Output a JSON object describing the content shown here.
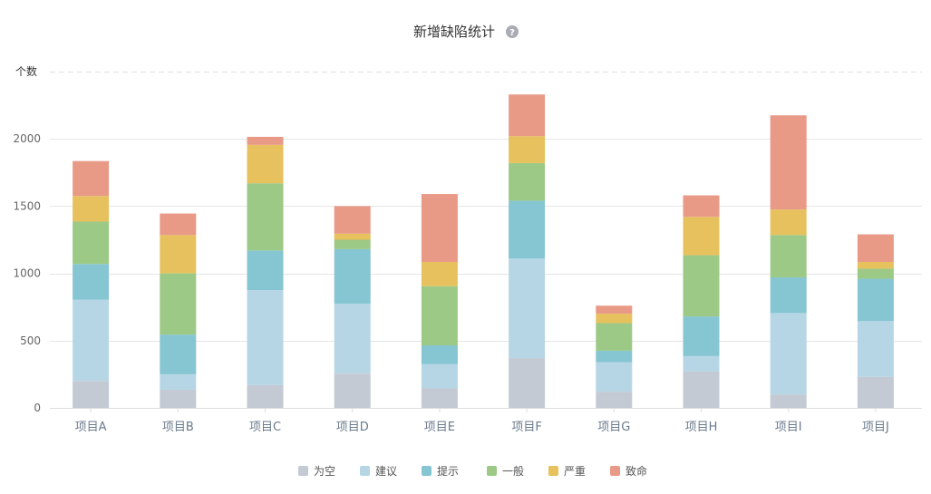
{
  "chart_data": {
    "type": "bar",
    "stacked": true,
    "title": "新增缺陷统计",
    "help_icon": "help-circle-icon",
    "ylabel": "个数",
    "xlabel": "",
    "ylim": [
      0,
      2500
    ],
    "yticks": [
      0,
      500,
      1000,
      1500,
      2000
    ],
    "grid": true,
    "legend_position": "bottom-center",
    "categories": [
      "项目A",
      "项目B",
      "项目C",
      "项目D",
      "项目E",
      "项目F",
      "项目G",
      "项目H",
      "项目I",
      "项目J"
    ],
    "series": [
      {
        "name": "为空",
        "color": "#c3cad3",
        "values": [
          200,
          135,
          170,
          255,
          145,
          370,
          120,
          270,
          100,
          230
        ]
      },
      {
        "name": "建议",
        "color": "#b7d6e5",
        "values": [
          605,
          115,
          705,
          520,
          180,
          740,
          220,
          115,
          605,
          415
        ]
      },
      {
        "name": "提示",
        "color": "#86c5d2",
        "values": [
          265,
          295,
          295,
          405,
          140,
          430,
          85,
          295,
          265,
          315
        ]
      },
      {
        "name": "一般",
        "color": "#9dc986",
        "values": [
          315,
          455,
          500,
          70,
          440,
          280,
          205,
          455,
          315,
          75
        ]
      },
      {
        "name": "严重",
        "color": "#e6c15d",
        "values": [
          190,
          285,
          285,
          45,
          180,
          200,
          70,
          285,
          190,
          50
        ]
      },
      {
        "name": "致命",
        "color": "#e99a87",
        "values": [
          260,
          160,
          60,
          205,
          505,
          310,
          60,
          160,
          700,
          205
        ]
      }
    ]
  }
}
